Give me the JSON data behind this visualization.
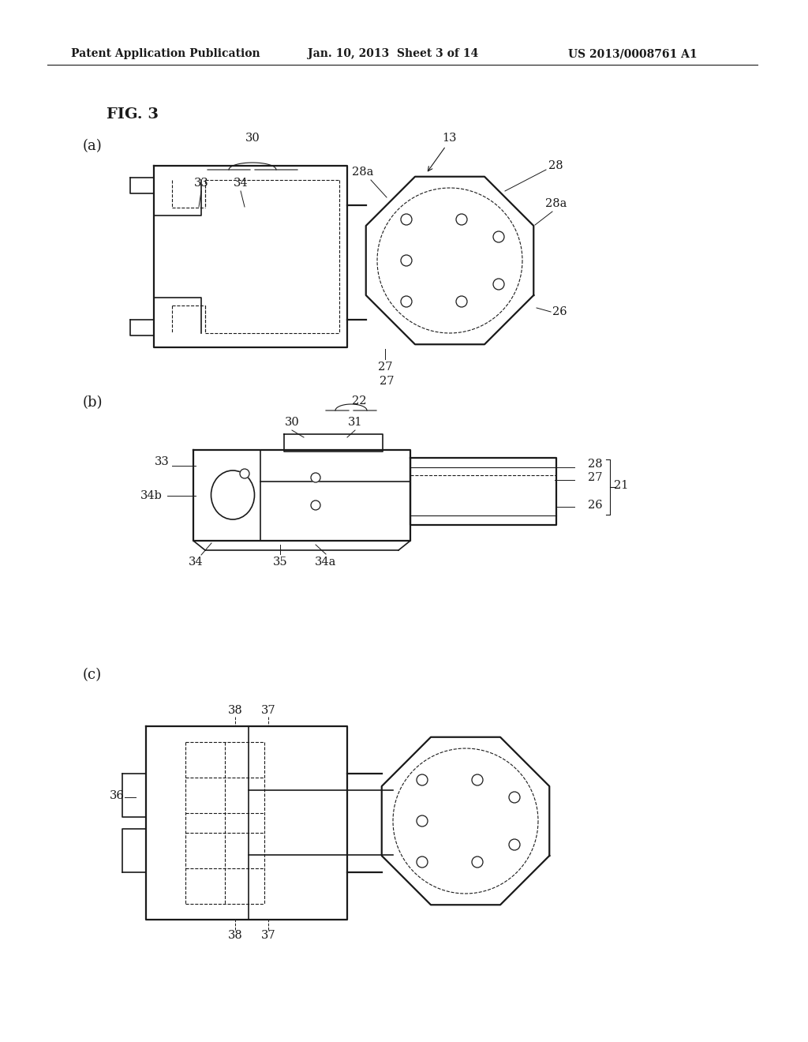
{
  "bg_color": "#ffffff",
  "header_left": "Patent Application Publication",
  "header_mid": "Jan. 10, 2013  Sheet 3 of 14",
  "header_right": "US 2013/0008761 A1",
  "fig_label": "FIG. 3",
  "header_fontsize": 10,
  "label_fontsize": 11,
  "ref_fontsize": 10.5
}
